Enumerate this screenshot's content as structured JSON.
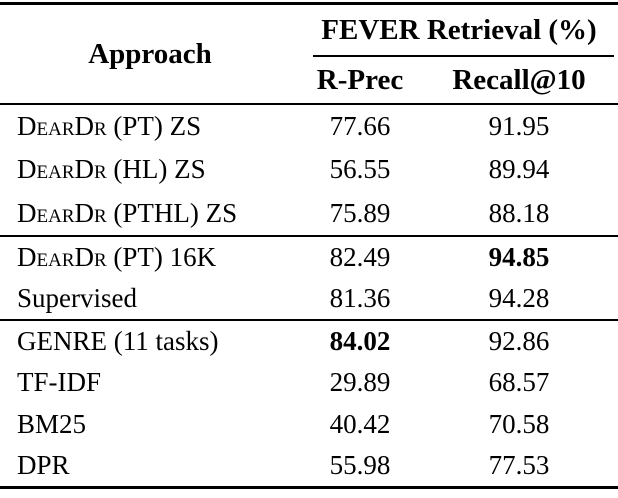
{
  "colors": {
    "text": "#000000",
    "rule": "#000000",
    "background": "#ffffff"
  },
  "table": {
    "header": {
      "approach": "Approach",
      "group": "FEVER Retrieval (%)",
      "col_rprec": "R-Prec",
      "col_recall": "Recall@10"
    },
    "groups": [
      {
        "rows": [
          {
            "approach": "DearDr (PT) ZS",
            "sc": true,
            "rprec": "77.66",
            "recall": "91.95",
            "rprec_bold": false,
            "recall_bold": false
          },
          {
            "approach": "DearDr (HL) ZS",
            "sc": true,
            "rprec": "56.55",
            "recall": "89.94",
            "rprec_bold": false,
            "recall_bold": false
          },
          {
            "approach": "DearDr (PTHL) ZS",
            "sc": true,
            "rprec": "75.89",
            "recall": "88.18",
            "rprec_bold": false,
            "recall_bold": false
          }
        ]
      },
      {
        "rows": [
          {
            "approach": "DearDr (PT) 16K",
            "sc": true,
            "rprec": "82.49",
            "recall": "94.85",
            "rprec_bold": false,
            "recall_bold": true
          },
          {
            "approach": "Supervised",
            "sc": false,
            "rprec": "81.36",
            "recall": "94.28",
            "rprec_bold": false,
            "recall_bold": false
          }
        ]
      },
      {
        "rows": [
          {
            "approach": "GENRE (11 tasks)",
            "sc": false,
            "rprec": "84.02",
            "recall": "92.86",
            "rprec_bold": true,
            "recall_bold": false
          },
          {
            "approach": "TF-IDF",
            "sc": false,
            "rprec": "29.89",
            "recall": "68.57",
            "rprec_bold": false,
            "recall_bold": false
          },
          {
            "approach": "BM25",
            "sc": false,
            "rprec": "40.42",
            "recall": "70.58",
            "rprec_bold": false,
            "recall_bold": false
          },
          {
            "approach": "DPR",
            "sc": false,
            "rprec": "55.98",
            "recall": "77.53",
            "rprec_bold": false,
            "recall_bold": false
          }
        ]
      }
    ]
  }
}
